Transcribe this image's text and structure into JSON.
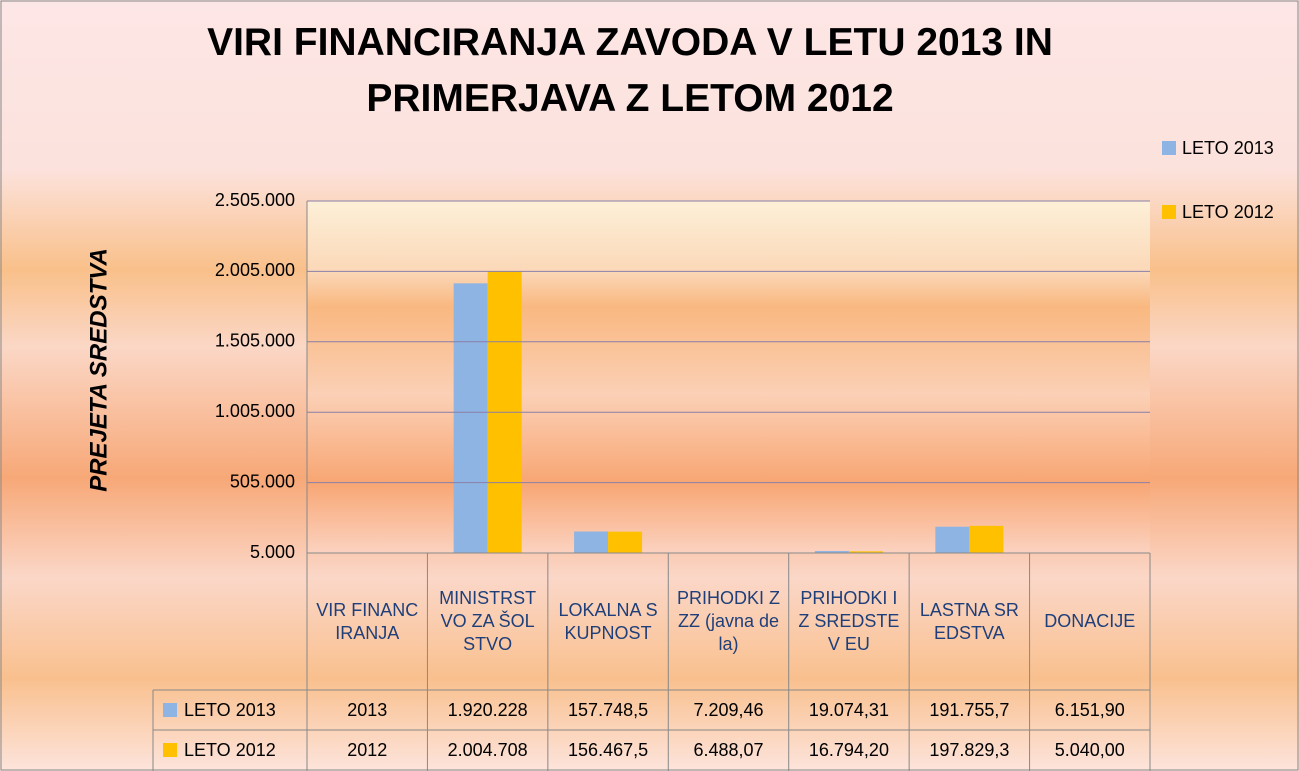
{
  "chart_data": {
    "type": "bar",
    "title": "VIRI FINANCIRANJA ZAVODA V LETU 2013 IN PRIMERJAVA Z LETOM 2012",
    "y_label": "PREJETA SREDSTVA",
    "categories": [
      "VIR FINANCIRANJA",
      "MINISTRSTVO ZA ŠOLSTVO",
      "LOKALNA SKUPNOST",
      "PRIHODKI ZZZ (javna dela)",
      "PRIHODKI IZ SREDSTEV EU",
      "LASTNA SREDSTVA",
      "DONACIJE"
    ],
    "series": [
      {
        "name": "LETO 2013",
        "color": "#8eb4e3",
        "values": [
          2013,
          1920228,
          157748.5,
          7209.46,
          19074.31,
          191755.7,
          6151.9
        ],
        "value_labels": [
          "2013",
          "1.920.228",
          "157.748,5",
          "7.209,46",
          "19.074,31",
          "191.755,7",
          "6.151,90"
        ]
      },
      {
        "name": "LETO 2012",
        "color": "#ffc000",
        "values": [
          2012,
          2004708,
          156467.5,
          6488.07,
          16794.2,
          197829.3,
          5040
        ],
        "value_labels": [
          "2012",
          "2.004.708",
          "156.467,5",
          "6.488,07",
          "16.794,20",
          "197.829,3",
          "5.040,00"
        ]
      }
    ],
    "ylim": [
      5000,
      2505000
    ],
    "yticks": [
      {
        "value": 5000,
        "label": "5.000"
      },
      {
        "value": 505000,
        "label": "505.000"
      },
      {
        "value": 1005000,
        "label": "1.005.000"
      },
      {
        "value": 1505000,
        "label": "1.505.000"
      },
      {
        "value": 2005000,
        "label": "2.005.000"
      },
      {
        "value": 2505000,
        "label": "2.505.000"
      }
    ],
    "grid": true,
    "legend": "right"
  }
}
